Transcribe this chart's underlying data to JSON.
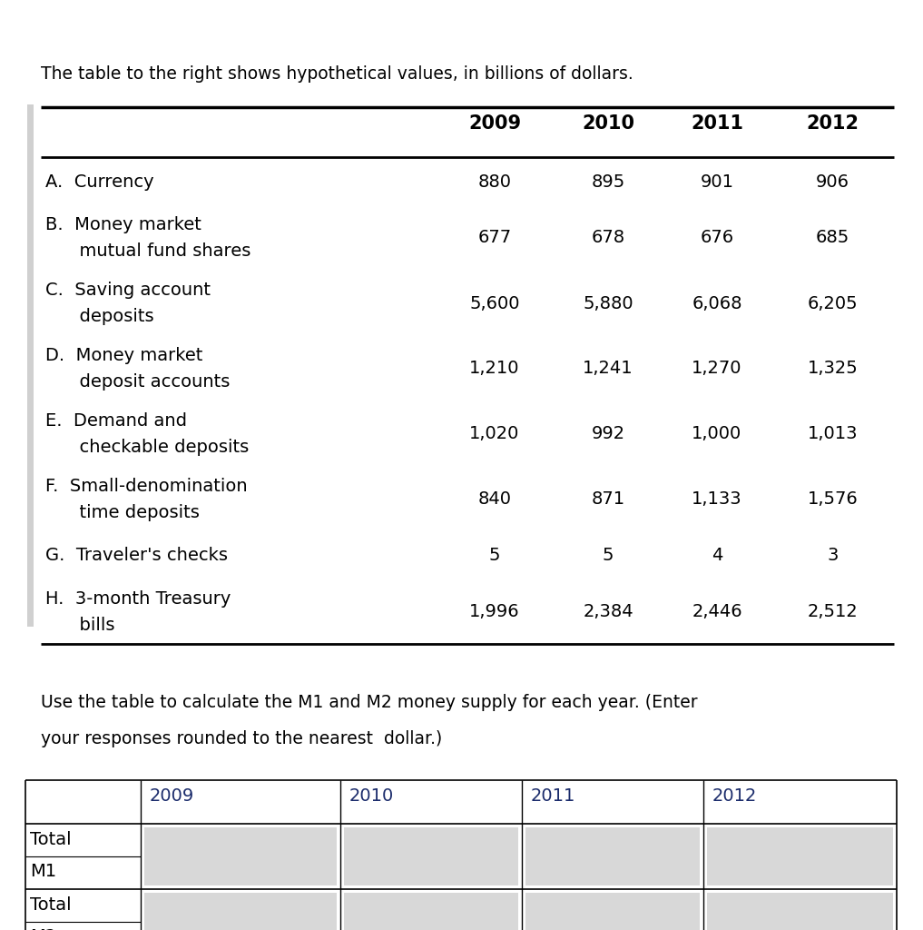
{
  "title": "The table to the right shows hypothetical values, in billions of dollars.",
  "subtitle_line1": "Use the table to calculate the M1 and M2 money supply for each year. (Enter",
  "subtitle_line2": "your responses rounded to the nearest  dollar.)",
  "years": [
    "2009",
    "2010",
    "2011",
    "2012"
  ],
  "rows": [
    {
      "label1": "A.  Currency",
      "label2": null,
      "values": [
        "880",
        "895",
        "901",
        "906"
      ]
    },
    {
      "label1": "B.  Money market",
      "label2": "      mutual fund shares",
      "values": [
        "677",
        "678",
        "676",
        "685"
      ]
    },
    {
      "label1": "C.  Saving account",
      "label2": "      deposits",
      "values": [
        "5,600",
        "5,880",
        "6,068",
        "6,205"
      ]
    },
    {
      "label1": "D.  Money market",
      "label2": "      deposit accounts",
      "values": [
        "1,210",
        "1,241",
        "1,270",
        "1,325"
      ]
    },
    {
      "label1": "E.  Demand and",
      "label2": "      checkable deposits",
      "values": [
        "1,020",
        "992",
        "1,000",
        "1,013"
      ]
    },
    {
      "label1": "F.  Small-denomination",
      "label2": "      time deposits",
      "values": [
        "840",
        "871",
        "1,133",
        "1,576"
      ]
    },
    {
      "label1": "G.  Traveler's checks",
      "label2": null,
      "values": [
        "5",
        "5",
        "4",
        "3"
      ]
    },
    {
      "label1": "H.  3-month Treasury",
      "label2": "      bills",
      "values": [
        "1,996",
        "2,384",
        "2,446",
        "2,512"
      ]
    }
  ],
  "bg_color": "#f5f5f5",
  "page_bg": "#ffffff",
  "border_color": "#000000",
  "input_cell_color": "#d8d8d8",
  "text_color": "#000000",
  "blue_text": "#1a2b6b",
  "body_fontsize": 14,
  "title_fontsize": 13.5,
  "header_fontsize": 15
}
